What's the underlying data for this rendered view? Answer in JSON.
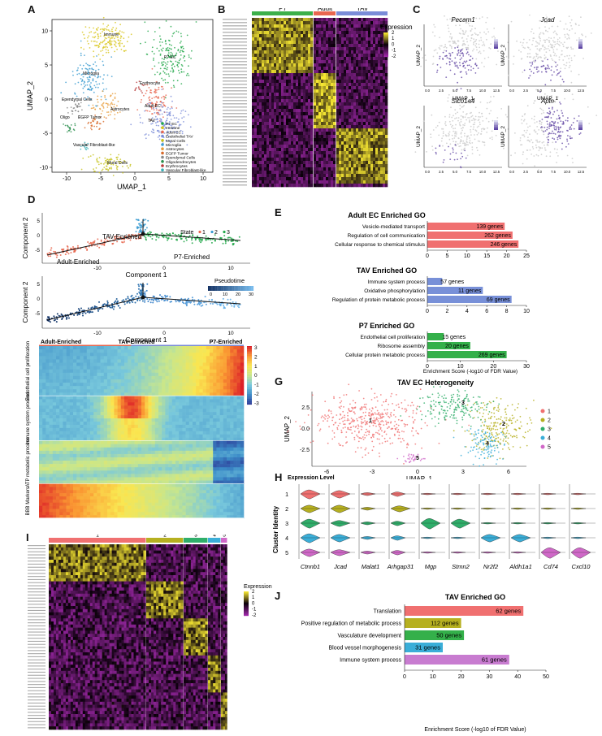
{
  "panels": {
    "A": {
      "label": "A",
      "xlabel": "UMAP_1",
      "ylabel": "UMAP_2",
      "xticks": [
        "-10",
        "-5",
        "0",
        "5",
        "10"
      ],
      "yticks": [
        "10",
        "5",
        "0",
        "-5",
        "-10"
      ],
      "cluster_labels": [
        "Immune",
        "Microglia",
        "P7 EC",
        "Erythrocyte",
        "Ependymal Cells",
        "Astrocytes",
        "Oligo",
        "EGFP Tumor",
        "Adult EC",
        "TAV",
        "Vascular Fibroblast-like",
        "Mural Cells"
      ],
      "legend": [
        {
          "name": "P7 EC",
          "color": "#22a84a"
        },
        {
          "name": "Immune",
          "color": "#d8c51c"
        },
        {
          "name": "Adult EC",
          "color": "#e8674f"
        },
        {
          "name": "Endothelial TAV",
          "color": "#7a8cd8"
        },
        {
          "name": "Mural Cells",
          "color": "#c6c21a"
        },
        {
          "name": "Microglia",
          "color": "#3a9bd1"
        },
        {
          "name": "Astrocytes",
          "color": "#e89e3c"
        },
        {
          "name": "EGFP Tumor",
          "color": "#d86a2a"
        },
        {
          "name": "Ependymal Cells",
          "color": "#8a8a8a"
        },
        {
          "name": "Oligodendrocytes",
          "color": "#2b8f4d"
        },
        {
          "name": "Erythrocytes",
          "color": "#b83a3a"
        },
        {
          "name": "Vascular Fibroblast-like",
          "color": "#3ab0b8"
        }
      ]
    },
    "B": {
      "label": "B",
      "groups": [
        {
          "name": "P7",
          "color": "#3cb04a"
        },
        {
          "name": "Adult",
          "color": "#e8674f"
        },
        {
          "name": "TAV",
          "color": "#7a8cd8"
        }
      ],
      "legend_title": "Expression",
      "legend_ticks": [
        "2",
        "1",
        "0",
        "-1",
        "-2"
      ]
    },
    "C": {
      "label": "C",
      "genes": [
        "Pecam1",
        "Jcad",
        "Slco1a4",
        "Apln"
      ],
      "xlabel": "UMAP_1",
      "ylabel": "UMAP_2",
      "xticks": [
        "0.0",
        "2.5",
        "5.0",
        "7.5",
        "10.0",
        "12.5"
      ]
    },
    "D": {
      "label": "D",
      "top": {
        "xlabel": "Component 1",
        "ylabel": "Component 2",
        "legend_title": "State",
        "states": [
          {
            "name": "1",
            "color": "#e8674f"
          },
          {
            "name": "2",
            "color": "#3a9bd1"
          },
          {
            "name": "3",
            "color": "#22a84a"
          }
        ],
        "annotations": [
          "TAV-Enriched",
          "Adult-Enriched",
          "P7-Enriched"
        ],
        "xticks": [
          "-10",
          "0",
          "10"
        ],
        "yticks": [
          "5",
          "0",
          "-5"
        ]
      },
      "middle": {
        "xlabel": "Component 1",
        "ylabel": "Component 2",
        "legend_title": "Pseudotime",
        "legend_ticks": [
          "0",
          "10",
          "20",
          "30"
        ],
        "xticks": [
          "-10",
          "0",
          "10"
        ],
        "yticks": [
          "5",
          "0",
          "-5"
        ]
      },
      "heatmap": {
        "header": [
          "Adult-Enriched",
          "TAV-Enriched",
          "P7-Enriched"
        ],
        "blocks": [
          "Endothelial cell proliferation",
          "Immune system process",
          "ATP metabolic process",
          "BBB Markers"
        ],
        "legend_ticks": [
          "3",
          "2",
          "1",
          "0",
          "-1",
          "-2",
          "-3"
        ]
      }
    },
    "E": {
      "label": "E",
      "charts": [
        {
          "title": "Adult EC Enriched GO",
          "color": "#f07070",
          "xticks": [
            "0",
            "5",
            "10",
            "15",
            "20",
            "25"
          ],
          "xmax": 25,
          "bars": [
            {
              "term": "Vesicle-mediated transport",
              "value": 19.5,
              "label": "139 genes"
            },
            {
              "term": "Regulation of cell communication",
              "value": 21.5,
              "label": "262 genes"
            },
            {
              "term": "Cellular response to chemical stimulus",
              "value": 23,
              "label": "246 genes"
            }
          ]
        },
        {
          "title": "TAV Enriched GO",
          "color": "#7890d8",
          "xticks": [
            "0",
            "2",
            "4",
            "6",
            "8",
            "10"
          ],
          "xmax": 10,
          "bars": [
            {
              "term": "Immune system process",
              "value": 1.5,
              "label": "57 genes"
            },
            {
              "term": "Oxidative phosphorylation",
              "value": 5.6,
              "label": "11 genes"
            },
            {
              "term": "Regulation of protein metabolic process",
              "value": 8.5,
              "label": "69 genes"
            }
          ]
        },
        {
          "title": "P7 Enriched GO",
          "color": "#34b04a",
          "xticks": [
            "0",
            "10",
            "20",
            "30"
          ],
          "xmax": 30,
          "bars": [
            {
              "term": "Endothelial cell proliferation",
              "value": 5,
              "label": "15 genes"
            },
            {
              "term": "Ribosome assembly",
              "value": 13,
              "label": "20 genes"
            },
            {
              "term": "Cellular protein metabolic process",
              "value": 24,
              "label": "269 genes"
            }
          ]
        }
      ],
      "xlabel": "Enrichment Score (-log10 of FDR Value)"
    },
    "G": {
      "label": "G",
      "title": "TAV EC Heterogeneity",
      "xlabel": "UMAP_1",
      "ylabel": "UMAP_2",
      "xticks": [
        "-6",
        "-3",
        "0",
        "3",
        "6"
      ],
      "yticks": [
        "2.5",
        "0.0",
        "-2.5"
      ],
      "clusters": [
        {
          "name": "1",
          "color": "#f07070"
        },
        {
          "name": "2",
          "color": "#b6b020"
        },
        {
          "name": "3",
          "color": "#2fae6a"
        },
        {
          "name": "4",
          "color": "#3aaed8"
        },
        {
          "name": "5",
          "color": "#d068c8"
        }
      ]
    },
    "H": {
      "label": "H",
      "legend_title": "Expression Level",
      "ylabel": "Cluster Identity",
      "rows": [
        "1",
        "2",
        "3",
        "4",
        "5"
      ],
      "genes": [
        "Ctnnb1",
        "Jcad",
        "Malat1",
        "Arhgap31",
        "Mgp",
        "Stmn2",
        "Nr2f2",
        "Aldh1a1",
        "Cd74",
        "Cxcl10"
      ],
      "colors": [
        "#f07070",
        "#b6b020",
        "#2fae6a",
        "#3aaed8",
        "#d068c8"
      ]
    },
    "I": {
      "label": "I",
      "clusters": [
        {
          "name": "1",
          "color": "#f07070"
        },
        {
          "name": "2",
          "color": "#b6b020"
        },
        {
          "name": "3",
          "color": "#2fae6a"
        },
        {
          "name": "4",
          "color": "#3aaed8"
        },
        {
          "name": "5",
          "color": "#d068c8"
        }
      ],
      "legend_title": "Expression",
      "legend_ticks": [
        "2",
        "1",
        "0",
        "-1",
        "-2"
      ]
    },
    "J": {
      "label": "J",
      "title": "TAV Enriched GO",
      "xlabel": "Enrichment Score (-log10 of FDR Value)",
      "xticks": [
        "0",
        "10",
        "20",
        "30",
        "40",
        "50"
      ],
      "xmax": 50,
      "bars": [
        {
          "term": "Translation",
          "value": 42,
          "label": "62 genes",
          "color": "#f07070"
        },
        {
          "term": "Positive regulation of metabolic process",
          "value": 20,
          "label": "112 genes",
          "color": "#b6b020"
        },
        {
          "term": "Vasculature development",
          "value": 21,
          "label": "50 genes",
          "color": "#34b04a"
        },
        {
          "term": "Blood vessel morphogenesis",
          "value": 13.5,
          "label": "31 genes",
          "color": "#3aaed8"
        },
        {
          "term": "Immune system process",
          "value": 37,
          "label": "61 genes",
          "color": "#c87cd0"
        }
      ]
    }
  }
}
